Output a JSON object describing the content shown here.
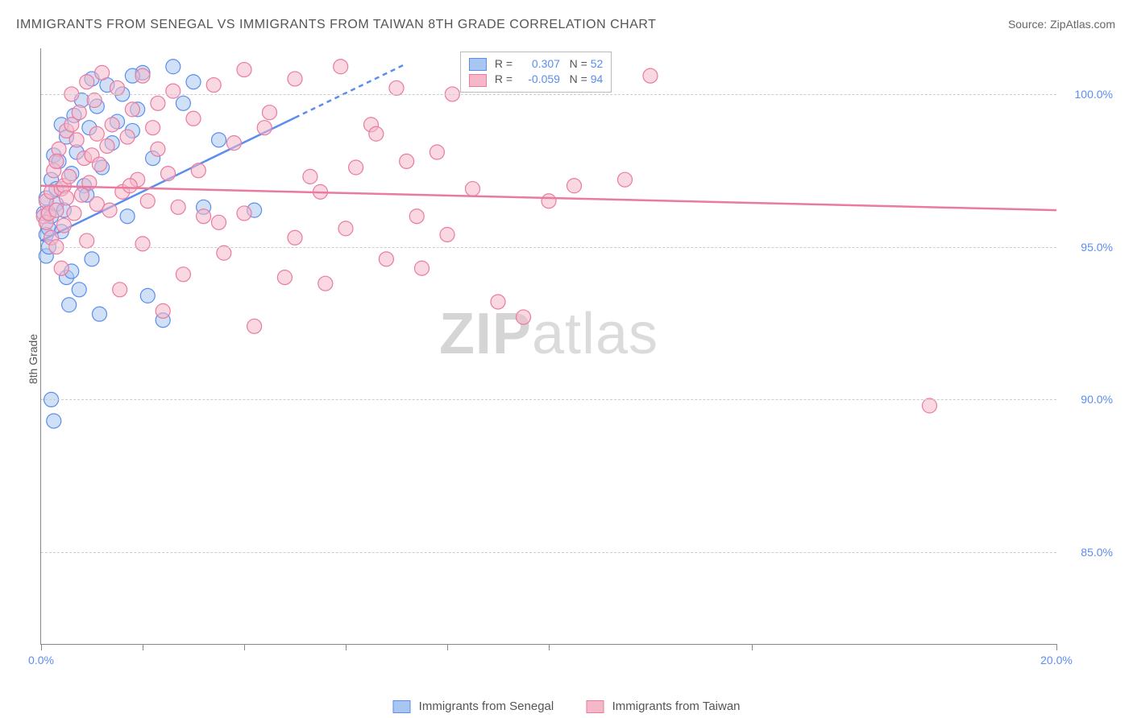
{
  "title": "IMMIGRANTS FROM SENEGAL VS IMMIGRANTS FROM TAIWAN 8TH GRADE CORRELATION CHART",
  "source": "Source: ZipAtlas.com",
  "y_axis_label": "8th Grade",
  "watermark_zip": "ZIP",
  "watermark_atlas": "atlas",
  "chart": {
    "type": "scatter",
    "xlim": [
      0,
      20
    ],
    "ylim": [
      82,
      101.5
    ],
    "y_ticks": [
      85,
      90,
      95,
      100
    ],
    "y_tick_labels": [
      "85.0%",
      "90.0%",
      "95.0%",
      "100.0%"
    ],
    "x_ticks": [
      0,
      2,
      4,
      6,
      8,
      10,
      14,
      20
    ],
    "x_tick_labels": {
      "0": "0.0%",
      "20": "20.0%"
    },
    "grid_color": "#cccccc",
    "series": [
      {
        "name": "Immigrants from Senegal",
        "fill": "#a9c6f0",
        "stroke": "#5b8def",
        "r_value": "0.307",
        "n_value": "52",
        "trend": {
          "x1": 0,
          "y1": 95.2,
          "x2": 7.2,
          "y2": 101.0,
          "dash_from_x": 5.0
        },
        "points": [
          [
            0.05,
            96.1
          ],
          [
            0.1,
            95.4
          ],
          [
            0.1,
            94.7
          ],
          [
            0.1,
            96.6
          ],
          [
            0.15,
            95.0
          ],
          [
            0.15,
            95.6
          ],
          [
            0.2,
            97.2
          ],
          [
            0.2,
            96.0
          ],
          [
            0.25,
            98.0
          ],
          [
            0.3,
            96.4
          ],
          [
            0.3,
            96.9
          ],
          [
            0.35,
            97.8
          ],
          [
            0.4,
            99.0
          ],
          [
            0.4,
            95.5
          ],
          [
            0.45,
            96.2
          ],
          [
            0.5,
            94.0
          ],
          [
            0.5,
            98.6
          ],
          [
            0.55,
            93.1
          ],
          [
            0.6,
            97.4
          ],
          [
            0.65,
            99.3
          ],
          [
            0.7,
            98.1
          ],
          [
            0.75,
            93.6
          ],
          [
            0.8,
            99.8
          ],
          [
            0.85,
            97.0
          ],
          [
            0.9,
            96.7
          ],
          [
            0.95,
            98.9
          ],
          [
            1.0,
            100.5
          ],
          [
            1.1,
            99.6
          ],
          [
            1.15,
            92.8
          ],
          [
            1.2,
            97.6
          ],
          [
            1.3,
            100.3
          ],
          [
            1.4,
            98.4
          ],
          [
            1.5,
            99.1
          ],
          [
            1.6,
            100.0
          ],
          [
            1.7,
            96.0
          ],
          [
            1.8,
            98.8
          ],
          [
            1.9,
            99.5
          ],
          [
            2.0,
            100.7
          ],
          [
            2.1,
            93.4
          ],
          [
            2.2,
            97.9
          ],
          [
            2.4,
            92.6
          ],
          [
            2.6,
            100.9
          ],
          [
            2.8,
            99.7
          ],
          [
            3.0,
            100.4
          ],
          [
            3.2,
            96.3
          ],
          [
            3.5,
            98.5
          ],
          [
            0.2,
            90.0
          ],
          [
            0.25,
            89.3
          ],
          [
            0.6,
            94.2
          ],
          [
            1.0,
            94.6
          ],
          [
            1.8,
            100.6
          ],
          [
            4.2,
            96.2
          ]
        ]
      },
      {
        "name": "Immigrants from Taiwan",
        "fill": "#f4b8c9",
        "stroke": "#ea7aa0",
        "r_value": "-0.059",
        "n_value": "94",
        "trend": {
          "x1": 0,
          "y1": 97.0,
          "x2": 20,
          "y2": 96.2
        },
        "points": [
          [
            0.05,
            96.0
          ],
          [
            0.1,
            95.8
          ],
          [
            0.1,
            96.5
          ],
          [
            0.15,
            96.1
          ],
          [
            0.2,
            95.3
          ],
          [
            0.2,
            96.8
          ],
          [
            0.25,
            97.5
          ],
          [
            0.3,
            96.2
          ],
          [
            0.3,
            95.0
          ],
          [
            0.35,
            98.2
          ],
          [
            0.4,
            96.9
          ],
          [
            0.4,
            94.3
          ],
          [
            0.45,
            97.0
          ],
          [
            0.5,
            98.8
          ],
          [
            0.5,
            96.6
          ],
          [
            0.55,
            97.3
          ],
          [
            0.6,
            100.0
          ],
          [
            0.65,
            96.1
          ],
          [
            0.7,
            98.5
          ],
          [
            0.75,
            99.4
          ],
          [
            0.8,
            96.7
          ],
          [
            0.85,
            97.9
          ],
          [
            0.9,
            100.4
          ],
          [
            0.95,
            97.1
          ],
          [
            1.0,
            98.0
          ],
          [
            1.05,
            99.8
          ],
          [
            1.1,
            96.4
          ],
          [
            1.15,
            97.7
          ],
          [
            1.2,
            100.7
          ],
          [
            1.3,
            98.3
          ],
          [
            1.4,
            99.0
          ],
          [
            1.5,
            100.2
          ],
          [
            1.6,
            96.8
          ],
          [
            1.7,
            98.6
          ],
          [
            1.8,
            99.5
          ],
          [
            1.9,
            97.2
          ],
          [
            2.0,
            100.6
          ],
          [
            2.1,
            96.5
          ],
          [
            2.2,
            98.9
          ],
          [
            2.3,
            99.7
          ],
          [
            2.4,
            92.9
          ],
          [
            2.5,
            97.4
          ],
          [
            2.6,
            100.1
          ],
          [
            2.8,
            94.1
          ],
          [
            3.0,
            99.2
          ],
          [
            3.2,
            96.0
          ],
          [
            3.4,
            100.3
          ],
          [
            3.6,
            94.8
          ],
          [
            3.8,
            98.4
          ],
          [
            4.0,
            100.8
          ],
          [
            4.2,
            92.4
          ],
          [
            4.5,
            99.4
          ],
          [
            4.8,
            94.0
          ],
          [
            5.0,
            100.5
          ],
          [
            5.3,
            97.3
          ],
          [
            5.6,
            93.8
          ],
          [
            5.9,
            100.9
          ],
          [
            6.2,
            97.6
          ],
          [
            6.5,
            99.0
          ],
          [
            6.8,
            94.6
          ],
          [
            7.0,
            100.2
          ],
          [
            7.2,
            97.8
          ],
          [
            7.5,
            94.3
          ],
          [
            7.8,
            98.1
          ],
          [
            8.1,
            100.0
          ],
          [
            8.5,
            96.9
          ],
          [
            9.0,
            93.2
          ],
          [
            9.5,
            92.7
          ],
          [
            10.0,
            96.5
          ],
          [
            10.5,
            97.0
          ],
          [
            11.5,
            97.2
          ],
          [
            12.0,
            100.6
          ],
          [
            0.3,
            97.8
          ],
          [
            0.45,
            95.7
          ],
          [
            0.6,
            99.0
          ],
          [
            0.9,
            95.2
          ],
          [
            1.1,
            98.7
          ],
          [
            1.35,
            96.2
          ],
          [
            1.55,
            93.6
          ],
          [
            1.75,
            97.0
          ],
          [
            2.0,
            95.1
          ],
          [
            2.3,
            98.2
          ],
          [
            2.7,
            96.3
          ],
          [
            3.1,
            97.5
          ],
          [
            3.5,
            95.8
          ],
          [
            4.0,
            96.1
          ],
          [
            4.4,
            98.9
          ],
          [
            5.0,
            95.3
          ],
          [
            5.5,
            96.8
          ],
          [
            6.0,
            95.6
          ],
          [
            6.6,
            98.7
          ],
          [
            7.4,
            96.0
          ],
          [
            8.0,
            95.4
          ],
          [
            17.5,
            89.8
          ]
        ]
      }
    ]
  },
  "legend_box": {
    "r_label": "R =",
    "n_label": "N ="
  },
  "bottom_legend": {
    "senegal": "Immigrants from Senegal",
    "taiwan": "Immigrants from Taiwan"
  }
}
